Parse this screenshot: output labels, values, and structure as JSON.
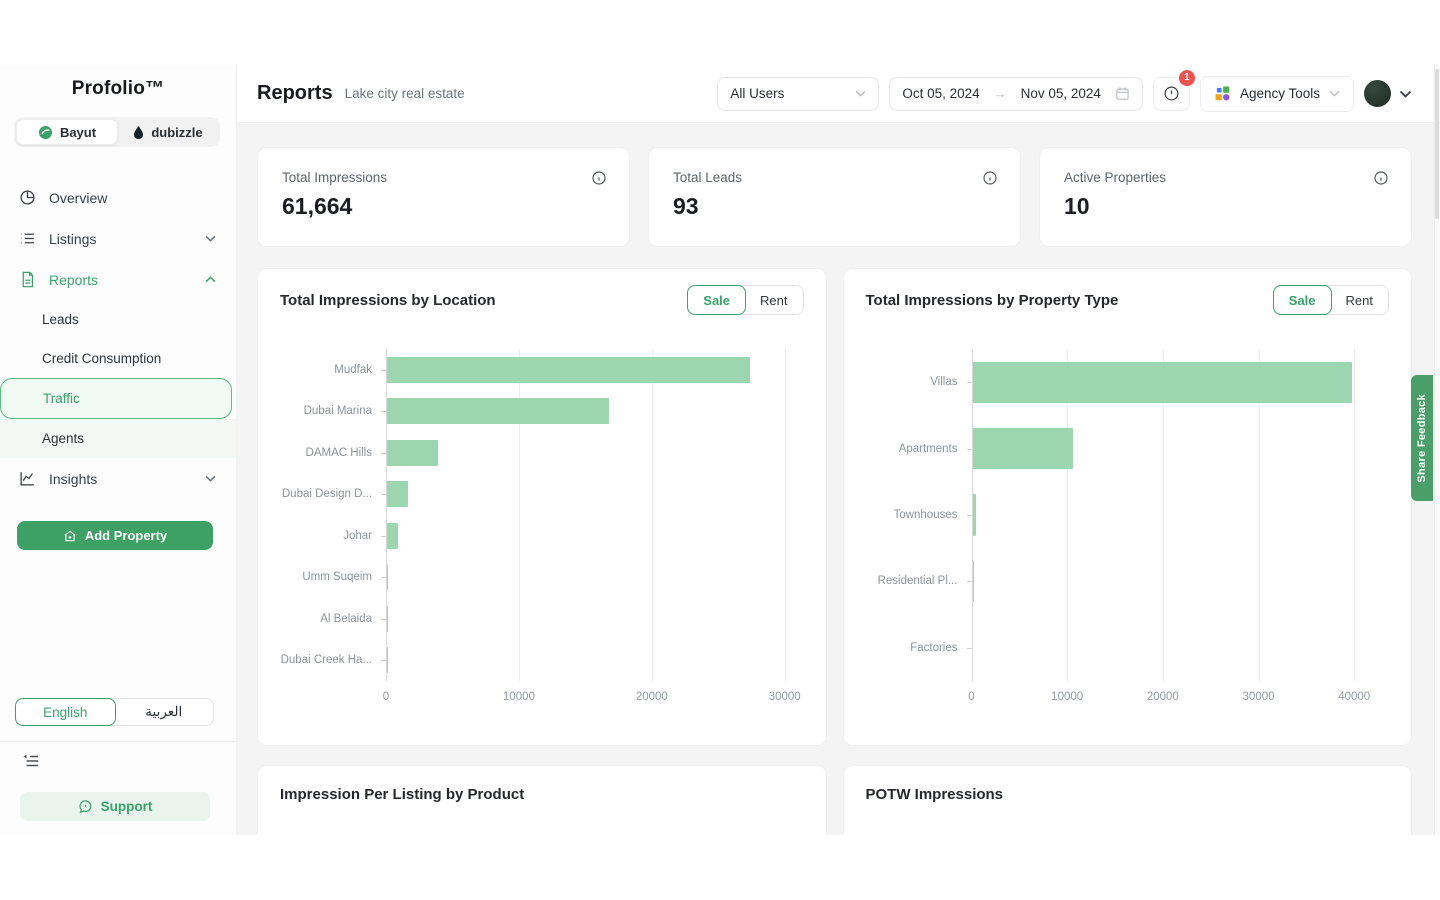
{
  "brand": {
    "name": "Profolio™"
  },
  "platform_tabs": [
    {
      "label": "Bayut"
    },
    {
      "label": "dubizzle"
    }
  ],
  "sidebar": {
    "overview": "Overview",
    "listings": "Listings",
    "reports": "Reports",
    "insights": "Insights",
    "submenu": [
      {
        "label": "Leads"
      },
      {
        "label": "Credit Consumption"
      },
      {
        "label": "Traffic"
      },
      {
        "label": "Agents"
      }
    ],
    "add_property_label": "Add Property",
    "language": {
      "english": "English",
      "arabic": "العربية"
    },
    "support_label": "Support"
  },
  "header": {
    "title": "Reports",
    "subtitle": "Lake city real estate",
    "users_filter": "All Users",
    "date_start": "Oct 05, 2024",
    "date_end": "Nov 05, 2024",
    "date_arrow": "→",
    "notification_count": "1",
    "agency_tools_label": "Agency Tools"
  },
  "stats": [
    {
      "label": "Total Impressions",
      "value": "61,664"
    },
    {
      "label": "Total Leads",
      "value": "93"
    },
    {
      "label": "Active Properties",
      "value": "10"
    }
  ],
  "bottom_cards": [
    {
      "title": "Impression Per Listing by Product"
    },
    {
      "title": "POTW Impressions"
    }
  ],
  "share_feedback_label": "Share Feedback",
  "colors": {
    "accent_green": "#3aa36b",
    "button_green": "#3da065",
    "bar_green": "#9cd6b0",
    "badge_red": "#ef5350"
  },
  "chart_data": [
    {
      "type": "bar",
      "orientation": "horizontal",
      "title": "Total Impressions by Location",
      "categories": [
        "Mudfak",
        "Dubai Marina",
        "DAMAC Hills",
        "Dubai Design D...",
        "Johar",
        "Umm Suqeim",
        "Al Belaida",
        "Dubai Creek Ha..."
      ],
      "values": [
        27300,
        16700,
        3800,
        1600,
        800,
        60,
        40,
        30
      ],
      "xticks": [
        0,
        10000,
        20000,
        30000
      ],
      "xlim": [
        0,
        31600
      ],
      "grid": true,
      "legend": "none",
      "bar_color": "#9cd6b0",
      "toggle": {
        "options": [
          "Sale",
          "Rent"
        ],
        "selected": "Sale"
      }
    },
    {
      "type": "bar",
      "orientation": "horizontal",
      "title": "Total Impressions by Property Type",
      "categories": [
        "Villas",
        "Apartments",
        "Townhouses",
        "Residential Pl...",
        "Factories"
      ],
      "values": [
        39700,
        10500,
        400,
        120,
        0
      ],
      "xticks": [
        0,
        10000,
        20000,
        30000,
        40000
      ],
      "xlim": [
        0,
        43900
      ],
      "grid": true,
      "legend": "none",
      "bar_color": "#9cd6b0",
      "toggle": {
        "options": [
          "Sale",
          "Rent"
        ],
        "selected": "Sale"
      }
    }
  ]
}
